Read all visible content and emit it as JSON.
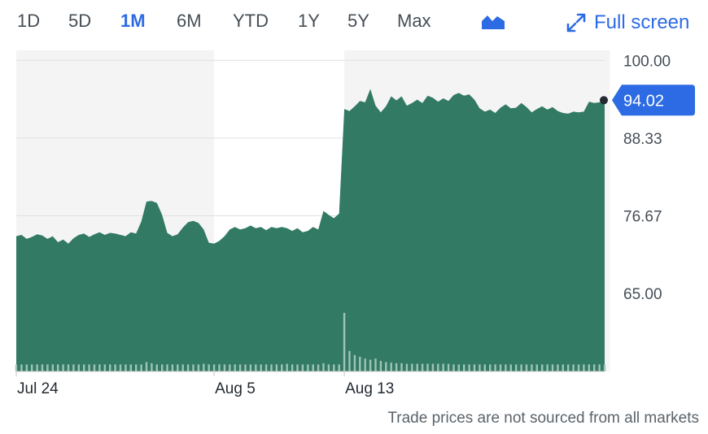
{
  "toolbar": {
    "ranges": [
      "1D",
      "5D",
      "1M",
      "6M",
      "YTD",
      "1Y",
      "5Y",
      "Max"
    ],
    "active_range": "1M",
    "chart_type_icon": "mountain-chart-icon",
    "fullscreen_label": "Full screen",
    "fullscreen_icon": "expand-arrows-icon"
  },
  "footer_note": "Trade prices are not sourced from all markets",
  "colors": {
    "area_fill": "#327a64",
    "accent": "#2d6be4",
    "shaded_bg": "#f4f4f4",
    "price_tag": "#2d6be4"
  },
  "chart_data": {
    "type": "area",
    "title": "",
    "xlabel": "",
    "ylabel": "",
    "ylim": [
      53.3,
      101.5
    ],
    "y_ticks": [
      100.0,
      88.33,
      76.67,
      65.0
    ],
    "y_tick_labels": [
      "100.00",
      "88.33",
      "76.67",
      "65.00"
    ],
    "x_tick_labels": [
      "Jul 24",
      "Aug 5",
      "Aug 13"
    ],
    "last_price": 94.02,
    "last_price_label": "94.02",
    "series": [
      {
        "values": [
          73.6,
          73.8,
          73.2,
          73.5,
          73.9,
          73.7,
          73.2,
          73.6,
          72.7,
          73.1,
          72.5,
          73.3,
          73.8,
          74.0,
          73.5,
          73.9,
          74.2,
          73.8,
          74.1,
          74.0,
          73.8,
          73.6,
          74.2,
          74.0,
          75.8,
          78.8,
          78.9,
          78.6,
          76.8,
          74.1,
          73.6,
          73.9,
          74.9,
          75.7,
          75.9,
          75.6,
          74.6,
          72.6,
          72.5,
          72.9,
          73.6,
          74.6,
          75.0,
          74.6,
          74.8,
          75.2,
          74.8,
          75.0,
          74.5,
          75.0,
          74.8,
          75.0,
          74.8,
          74.4,
          74.8,
          74.2,
          74.4,
          75.0,
          74.6,
          77.4,
          76.8,
          76.3,
          77.0,
          92.7,
          92.4,
          93.1,
          93.9,
          93.7,
          95.7,
          93.2,
          92.2,
          93.1,
          94.6,
          94.0,
          94.6,
          93.2,
          93.6,
          94.1,
          93.6,
          94.7,
          94.4,
          93.8,
          94.3,
          93.9,
          94.8,
          95.1,
          94.7,
          94.9,
          94.1,
          92.8,
          92.3,
          92.6,
          92.1,
          92.9,
          93.4,
          92.8,
          92.9,
          93.6,
          93.0,
          92.2,
          92.7,
          93.1,
          92.6,
          93.0,
          92.4,
          92.1,
          92.0,
          92.3,
          92.2,
          92.3,
          93.8,
          93.6,
          93.7,
          94.02
        ]
      }
    ],
    "volume_rel": [
      0.12,
      0.12,
      0.12,
      0.12,
      0.12,
      0.12,
      0.12,
      0.12,
      0.12,
      0.12,
      0.12,
      0.12,
      0.12,
      0.12,
      0.12,
      0.12,
      0.12,
      0.12,
      0.12,
      0.12,
      0.12,
      0.12,
      0.12,
      0.12,
      0.12,
      0.16,
      0.14,
      0.12,
      0.12,
      0.12,
      0.12,
      0.12,
      0.12,
      0.12,
      0.12,
      0.12,
      0.13,
      0.12,
      0.12,
      0.12,
      0.12,
      0.12,
      0.12,
      0.12,
      0.12,
      0.12,
      0.12,
      0.12,
      0.12,
      0.12,
      0.12,
      0.12,
      0.13,
      0.12,
      0.12,
      0.12,
      0.12,
      0.12,
      0.12,
      0.14,
      0.12,
      0.12,
      0.12,
      1.0,
      0.35,
      0.28,
      0.25,
      0.22,
      0.2,
      0.22,
      0.18,
      0.16,
      0.15,
      0.14,
      0.14,
      0.13,
      0.13,
      0.13,
      0.13,
      0.13,
      0.13,
      0.13,
      0.13,
      0.13,
      0.12,
      0.12,
      0.12,
      0.12,
      0.12,
      0.12,
      0.12,
      0.12,
      0.12,
      0.12,
      0.12,
      0.12,
      0.12,
      0.12,
      0.12,
      0.12,
      0.12,
      0.12,
      0.12,
      0.12,
      0.12,
      0.12,
      0.12,
      0.12,
      0.12,
      0.12,
      0.12,
      0.12,
      0.12,
      0.12
    ],
    "x_tick_index": [
      0,
      38,
      63
    ],
    "shaded_segments": [
      [
        0,
        38
      ],
      [
        63,
        114
      ]
    ]
  }
}
